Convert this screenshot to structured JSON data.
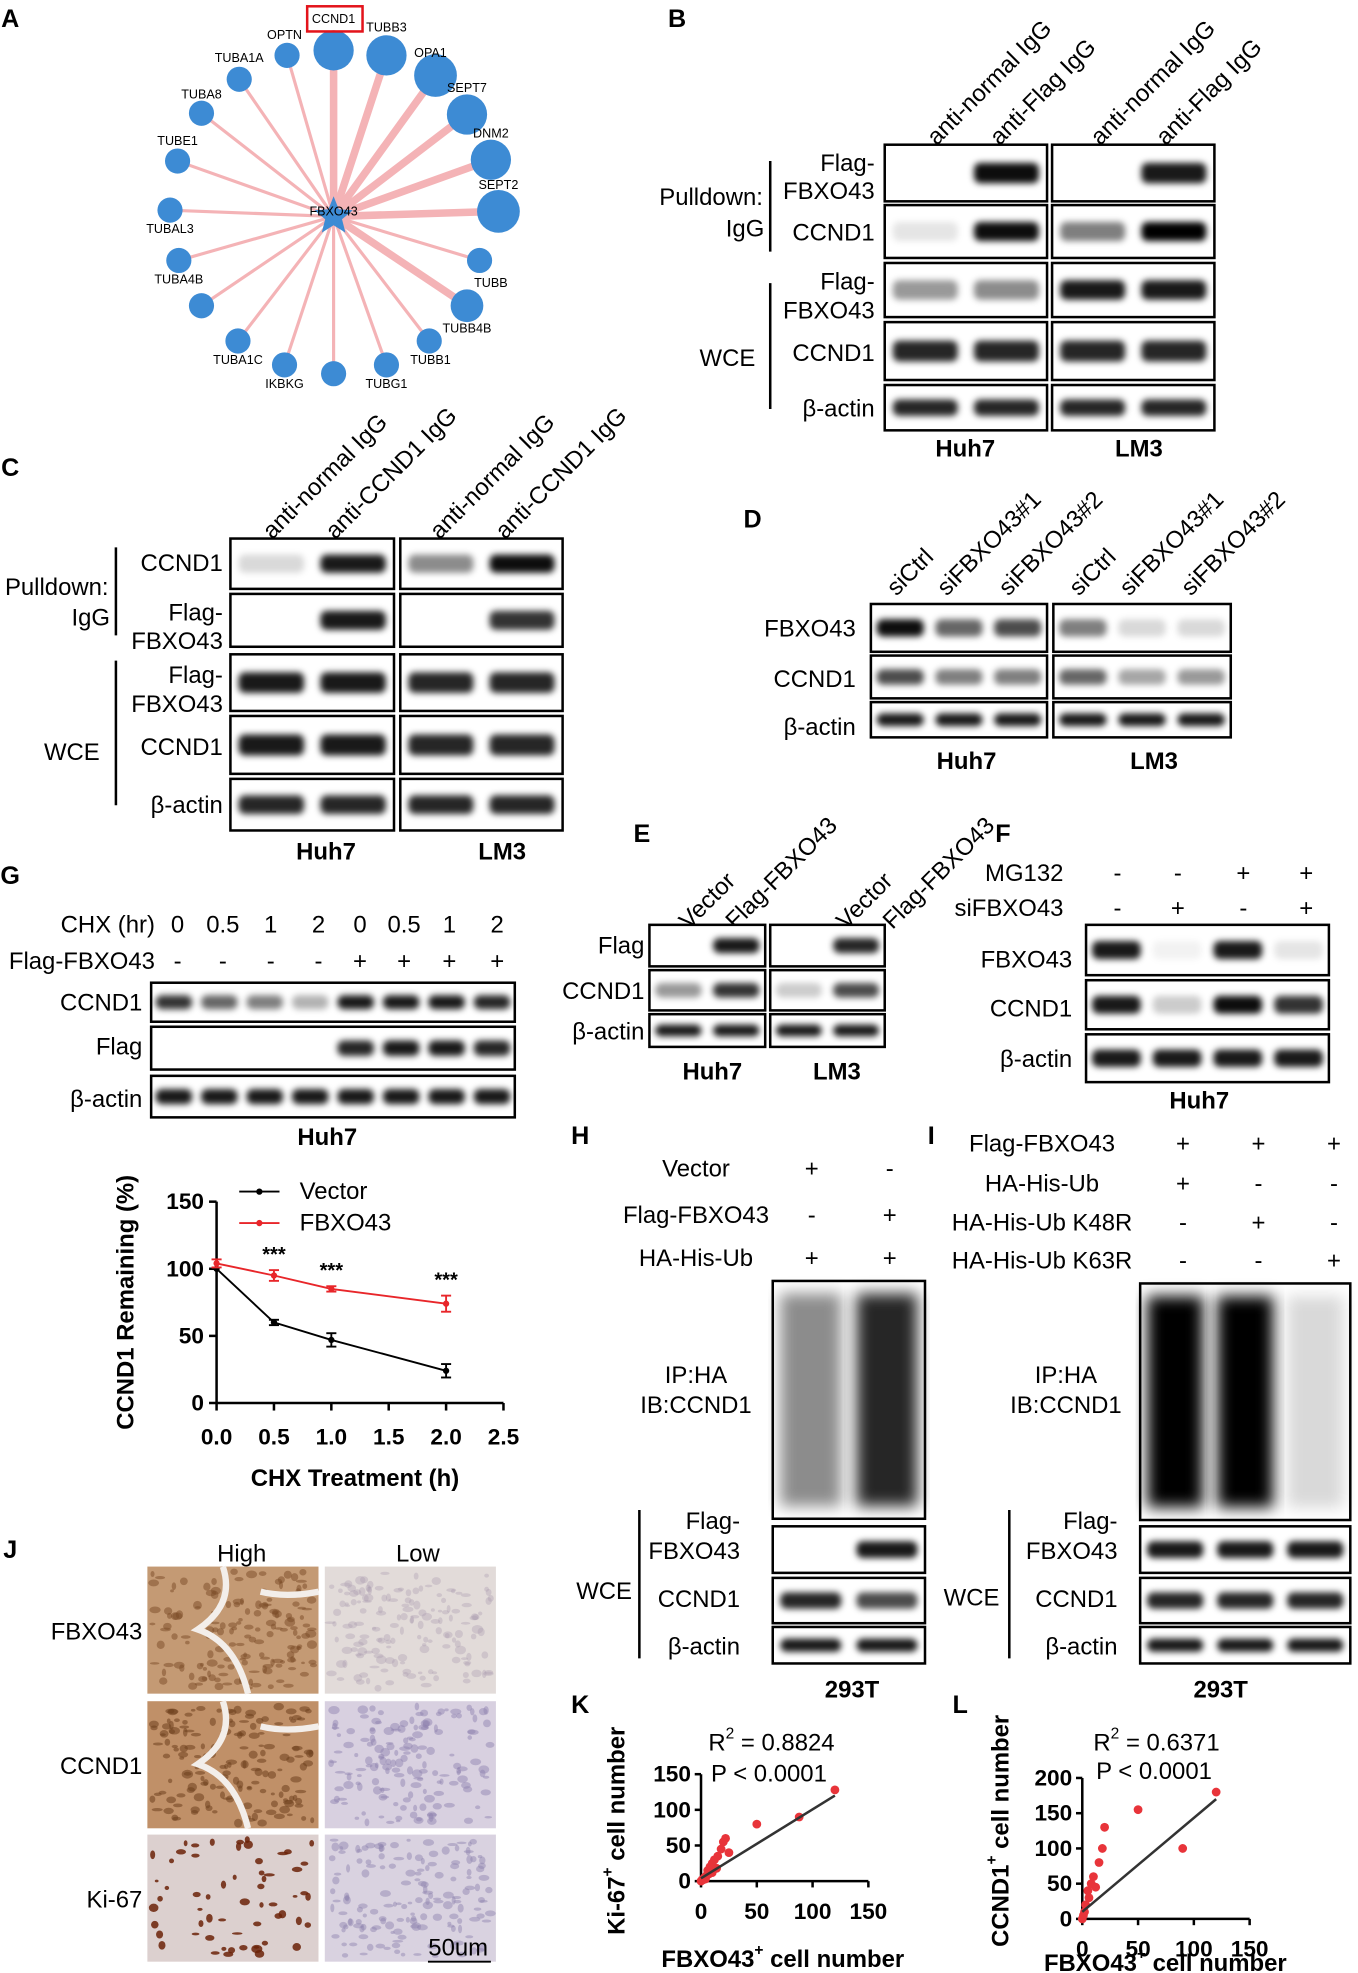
{
  "panel_a": {
    "letter": "A",
    "center": "FBXO43",
    "nodes": [
      "OPTN",
      "CCND1",
      "TUBB3",
      "OPA1",
      "SEPT7",
      "DNM2",
      "SEPT2",
      "TUBB",
      "TUBB4B",
      "TUBB1",
      "TUBG1",
      "IKBKG",
      "TUBA1C",
      "TUBA4B",
      "TUBAL3",
      "TUBE1",
      "TUBA8",
      "TUBA1A"
    ]
  },
  "panel_b": {
    "letter": "B",
    "lanes": [
      "anti-normal IgG",
      "anti-Flag IgG",
      "anti-normal IgG",
      "anti-Flag IgG"
    ],
    "groups": [
      "Pulldown:",
      "IgG",
      "WCE"
    ],
    "rows": [
      [
        "Flag-",
        "FBXO43"
      ],
      [
        "CCND1"
      ],
      [
        "Flag-",
        "FBXO43"
      ],
      [
        "CCND1"
      ],
      [
        "β-actin"
      ]
    ],
    "cells": [
      "Huh7",
      "LM3"
    ]
  },
  "panel_c": {
    "letter": "C",
    "lanes": [
      "anti-normal IgG",
      "anti-CCND1 IgG",
      "anti-normal IgG",
      "anti-CCND1 IgG"
    ],
    "groups": [
      "Pulldown:",
      "IgG",
      "WCE"
    ],
    "rows": [
      [
        "CCND1"
      ],
      [
        "Flag-",
        "FBXO43"
      ],
      [
        "Flag-",
        "FBXO43"
      ],
      [
        "CCND1"
      ],
      [
        "β-actin"
      ]
    ],
    "cells": [
      "Huh7",
      "LM3"
    ]
  },
  "panel_d": {
    "letter": "D",
    "lanes": [
      "siCtrl",
      "siFBXO43#1",
      "siFBXO43#2",
      "siCtrl",
      "siFBXO43#1",
      "siFBXO43#2"
    ],
    "rows": [
      [
        "FBXO43"
      ],
      [
        "CCND1"
      ],
      [
        "β-actin"
      ]
    ],
    "cells": [
      "Huh7",
      "LM3"
    ]
  },
  "panel_e": {
    "letter": "E",
    "lanes": [
      "Vector",
      "Flag-FBXO43",
      "Vector",
      "Flag-FBXO43"
    ],
    "rows": [
      [
        "Flag"
      ],
      [
        "CCND1"
      ],
      [
        "β-actin"
      ]
    ],
    "cells": [
      "Huh7",
      "LM3"
    ]
  },
  "panel_f": {
    "letter": "F",
    "treatments": [
      {
        "name": "MG132",
        "signs": [
          "-",
          "-",
          "+",
          "+"
        ]
      },
      {
        "name": "siFBXO43",
        "signs": [
          "-",
          "+",
          "-",
          "+"
        ]
      }
    ],
    "rows": [
      [
        "FBXO43"
      ],
      [
        "CCND1"
      ],
      [
        "β-actin"
      ]
    ],
    "cells": [
      "Huh7"
    ]
  },
  "panel_g": {
    "letter": "G",
    "treatments": [
      {
        "name": "CHX (hr)",
        "signs": [
          "0",
          "0.5",
          "1",
          "2",
          "0",
          "0.5",
          "1",
          "2"
        ]
      },
      {
        "name": "Flag-FBXO43",
        "signs": [
          "-",
          "-",
          "-",
          "-",
          "+",
          "+",
          "+",
          "+"
        ]
      }
    ],
    "rows": [
      [
        "CCND1"
      ],
      [
        "Flag"
      ],
      [
        "β-actin"
      ]
    ],
    "cells": [
      "Huh7"
    ]
  },
  "panel_h": {
    "letter": "H",
    "treatments": [
      {
        "name": "Vector",
        "signs": [
          "+",
          "-"
        ]
      },
      {
        "name": "Flag-FBXO43",
        "signs": [
          "-",
          "+"
        ]
      },
      {
        "name": "HA-His-Ub",
        "signs": [
          "+",
          "+"
        ]
      }
    ],
    "ip": [
      "IP:HA",
      "IB:CCND1"
    ],
    "groups": [
      "WCE"
    ],
    "rows": [
      [
        "Flag-",
        "FBXO43"
      ],
      [
        "CCND1"
      ],
      [
        "β-actin"
      ]
    ],
    "cells": [
      "293T"
    ]
  },
  "panel_i": {
    "letter": "I",
    "treatments": [
      {
        "name": "Flag-FBXO43",
        "signs": [
          "+",
          "+",
          "+"
        ]
      },
      {
        "name": "HA-His-Ub",
        "signs": [
          "+",
          "-",
          "-"
        ]
      },
      {
        "name": "HA-His-Ub K48R",
        "signs": [
          "-",
          "+",
          "-"
        ]
      },
      {
        "name": "HA-His-Ub K63R",
        "signs": [
          "-",
          "-",
          "+"
        ]
      }
    ],
    "ip": [
      "IP:HA",
      "IB:CCND1"
    ],
    "groups": [
      "WCE"
    ],
    "rows": [
      [
        "Flag-",
        "FBXO43"
      ],
      [
        "CCND1"
      ],
      [
        "β-actin"
      ]
    ],
    "cells": [
      "293T"
    ]
  },
  "panel_j": {
    "letter": "J",
    "columns": [
      "High",
      "Low"
    ],
    "rows": [
      "FBXO43",
      "CCND1",
      "Ki-67"
    ],
    "scale": "50um"
  },
  "chart_data": [
    {
      "type": "line",
      "x_label": "CHX Treatment (h)",
      "y_label": "CCND1 Remaining (%)",
      "x": [
        0,
        0.5,
        1,
        2
      ],
      "series": [
        {
          "name": "Vector",
          "color": "#000000",
          "values": [
            100,
            60,
            47,
            24
          ],
          "errors": [
            0,
            2,
            5,
            5
          ]
        },
        {
          "name": "FBXO43",
          "color": "#e8262a",
          "values": [
            104,
            95,
            85,
            74
          ],
          "errors": [
            3,
            4,
            2,
            6
          ]
        }
      ],
      "annotations": [
        {
          "text": "***",
          "x": 0.5
        },
        {
          "text": "***",
          "x": 1
        },
        {
          "text": "***",
          "x": 2
        }
      ],
      "xlim": [
        0,
        2.5
      ],
      "xticks": [
        {
          "value": 0,
          "label": "0.0"
        },
        {
          "value": 0.5,
          "label": "0.5"
        },
        {
          "value": 1,
          "label": "1.0"
        },
        {
          "value": 1.5,
          "label": "1.5"
        },
        {
          "value": 2,
          "label": "2.0"
        },
        {
          "value": 2.5,
          "label": "2.5"
        }
      ],
      "ylim": [
        0,
        150
      ],
      "yticks": [
        0,
        50,
        100,
        150
      ],
      "grid": false
    },
    {
      "type": "scatter",
      "panel_label": "K",
      "x_label": [
        "FBXO43",
        "+",
        " cell number"
      ],
      "y_label": [
        "Ki-67",
        "+",
        " cell number"
      ],
      "r2": [
        "R",
        "2",
        " = 0.8824"
      ],
      "p": "P < 0.0001",
      "color": "#e8343a",
      "x": [
        0,
        1,
        2,
        3,
        4,
        5,
        6,
        7,
        8,
        10,
        10,
        12,
        14,
        15,
        18,
        20,
        22,
        25,
        50,
        88,
        120
      ],
      "y": [
        0,
        2,
        2,
        5,
        3,
        8,
        15,
        10,
        20,
        12,
        25,
        30,
        18,
        35,
        45,
        55,
        60,
        40,
        80,
        90,
        128
      ],
      "fit": {
        "x": [
          0,
          120
        ],
        "y": [
          4,
          120
        ]
      },
      "xlim": [
        0,
        150
      ],
      "xticks": [
        0,
        50,
        100,
        150
      ],
      "ylim": [
        0,
        150
      ],
      "yticks": [
        0,
        50,
        100,
        150
      ]
    },
    {
      "type": "scatter",
      "panel_label": "L",
      "x_label": [
        "FBXO43",
        "+",
        " cell number"
      ],
      "y_label": [
        "CCND1",
        "+",
        " cell number"
      ],
      "r2": [
        "R",
        "2",
        " = 0.6371"
      ],
      "p": "P < 0.0001",
      "color": "#e8343a",
      "x": [
        0,
        1,
        2,
        3,
        5,
        6,
        8,
        10,
        12,
        15,
        18,
        20,
        50,
        90,
        120
      ],
      "y": [
        0,
        5,
        10,
        20,
        40,
        30,
        50,
        60,
        45,
        80,
        100,
        130,
        155,
        100,
        180
      ],
      "fit": {
        "x": [
          0,
          120
        ],
        "y": [
          10,
          170
        ]
      },
      "xlim": [
        0,
        150
      ],
      "xticks": [
        0,
        50,
        100,
        150
      ],
      "ylim": [
        0,
        200
      ],
      "yticks": [
        0,
        50,
        100,
        150,
        200
      ]
    }
  ]
}
